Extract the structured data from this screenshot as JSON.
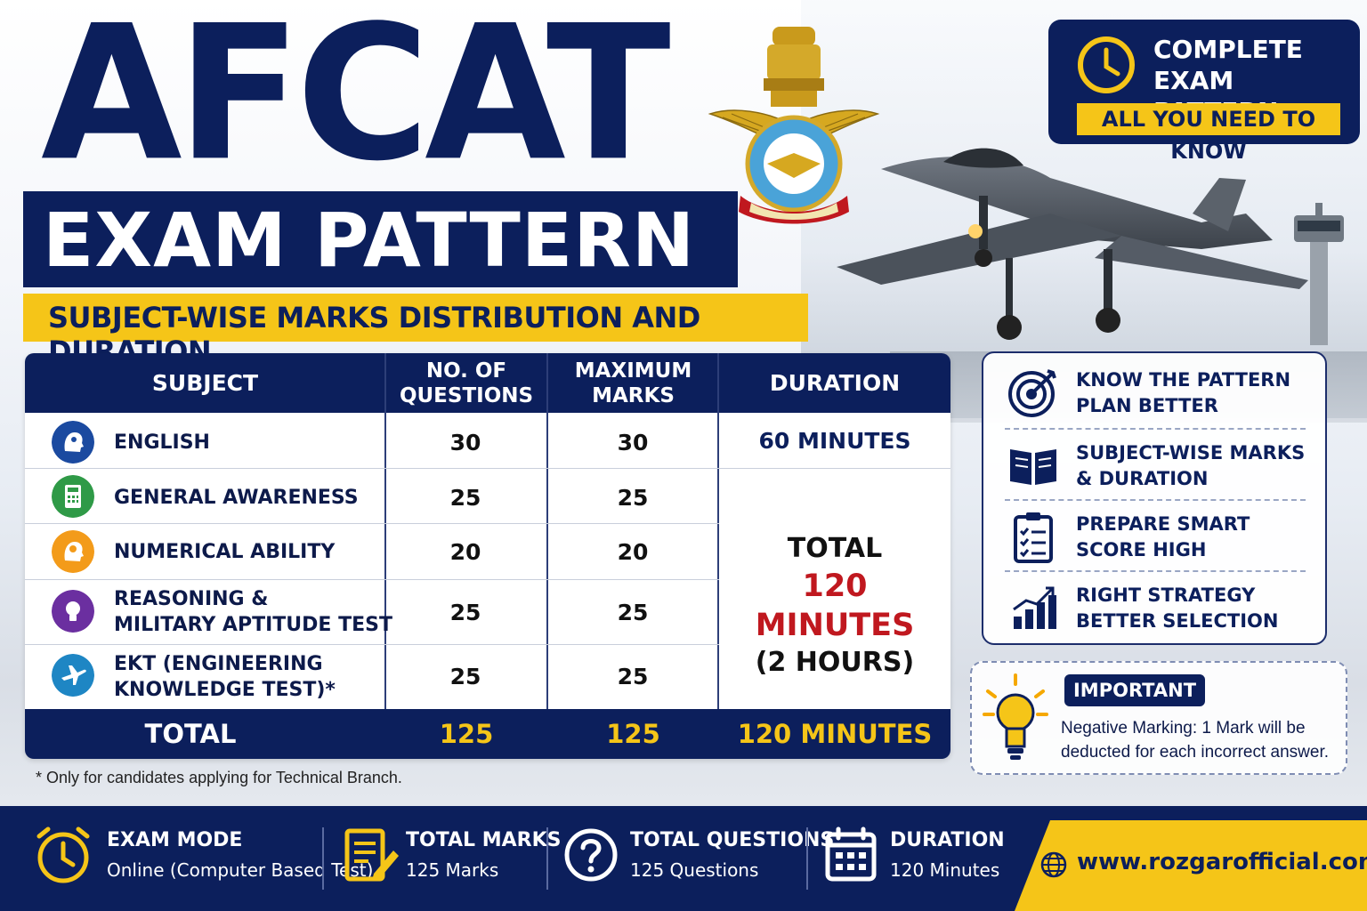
{
  "title": {
    "main": "AFCAT",
    "sub": "EXAM PATTERN",
    "strip": "SUBJECT-WISE MARKS DISTRIBUTION AND DURATION"
  },
  "badge": {
    "title": "COMPLETE\nEXAM PATTERN",
    "strip": "ALL YOU NEED TO KNOW"
  },
  "table": {
    "headers": {
      "subject": "SUBJECT",
      "questions": "NO. OF\nQUESTIONS",
      "marks": "MAXIMUM\nMARKS",
      "duration": "DURATION"
    },
    "rows": [
      {
        "subject": "ENGLISH",
        "questions": "30",
        "marks": "30",
        "icon": "head-icon"
      },
      {
        "subject": "GENERAL AWARENESS",
        "questions": "25",
        "marks": "25",
        "icon": "calculator-icon"
      },
      {
        "subject": "NUMERICAL ABILITY",
        "questions": "20",
        "marks": "20",
        "icon": "brain-head-icon"
      },
      {
        "subject": "REASONING &\nMILITARY APTITUDE TEST",
        "questions": "25",
        "marks": "25",
        "icon": "lightbulb-icon"
      },
      {
        "subject": "EKT (ENGINEERING\nKNOWLEDGE TEST)*",
        "questions": "25",
        "marks": "25",
        "icon": "airplane-icon"
      }
    ],
    "duration_english": "60 MINUTES",
    "duration_total_label": "TOTAL",
    "duration_total_value": "120 MINUTES",
    "duration_total_hours": "(2 HOURS)",
    "total": {
      "label": "TOTAL",
      "questions": "125",
      "marks": "125",
      "duration": "120 MINUTES"
    },
    "footnote": "* Only for candidates applying for Technical Branch."
  },
  "panel": {
    "items": [
      {
        "text": "KNOW THE PATTERN\nPLAN BETTER",
        "icon": "target-icon"
      },
      {
        "text": "SUBJECT-WISE MARKS\n& DURATION",
        "icon": "open-book-icon"
      },
      {
        "text": "PREPARE SMART\nSCORE HIGH",
        "icon": "checklist-icon"
      },
      {
        "text": "RIGHT STRATEGY\nBETTER SELECTION",
        "icon": "bar-chart-icon"
      }
    ]
  },
  "important": {
    "tag": "IMPORTANT",
    "text": "Negative Marking: 1 Mark will be deducted for each incorrect answer."
  },
  "bottom": {
    "items": [
      {
        "title": "EXAM MODE",
        "value": "Online (Computer Based Test)",
        "icon": "clock-icon"
      },
      {
        "title": "TOTAL MARKS",
        "value": "125 Marks",
        "icon": "document-pencil-icon"
      },
      {
        "title": "TOTAL QUESTIONS",
        "value": "125 Questions",
        "icon": "question-icon"
      },
      {
        "title": "DURATION",
        "value": "120 Minutes",
        "icon": "calendar-icon"
      }
    ],
    "website": "www.rozgarofficial.com"
  },
  "colors": {
    "navy": "#0c1f5c",
    "yellow": "#f5c518",
    "red": "#c0181f"
  }
}
